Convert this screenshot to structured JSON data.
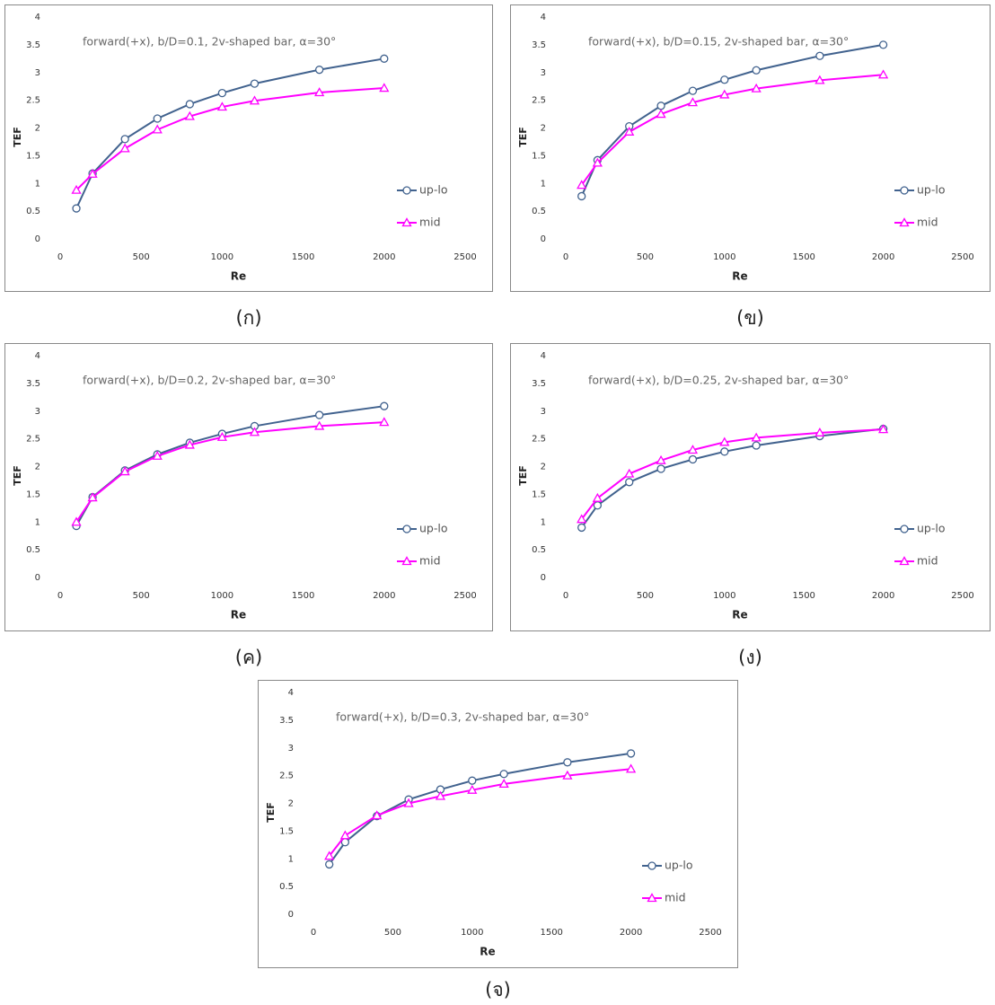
{
  "chart_data": [
    {
      "type": "line",
      "title": "forward(+x), b/D=0.1, 2v-shaped bar, α=30°",
      "caption": "(ก)",
      "xlabel": "Re",
      "ylabel": "TEF",
      "x": [
        100,
        200,
        400,
        600,
        800,
        1000,
        1200,
        1600,
        2000
      ],
      "series": [
        {
          "name": "up-lo",
          "color": "#41628e",
          "marker": "circle",
          "values": [
            0.55,
            1.18,
            1.8,
            2.17,
            2.43,
            2.63,
            2.8,
            3.05,
            3.25
          ]
        },
        {
          "name": "mid",
          "color": "#ff00ff",
          "marker": "triangle",
          "values": [
            0.88,
            1.17,
            1.63,
            1.97,
            2.21,
            2.38,
            2.49,
            2.64,
            2.72
          ]
        }
      ],
      "xlim": [
        0,
        2500
      ],
      "xticks": [
        0,
        500,
        1000,
        1500,
        2000,
        2500
      ],
      "ylim": [
        0,
        4
      ],
      "yticks": [
        0,
        0.5,
        1,
        1.5,
        2,
        2.5,
        3,
        3.5,
        4
      ],
      "legend": "right"
    },
    {
      "type": "line",
      "title": "forward(+x), b/D=0.15, 2v-shaped bar, α=30°",
      "caption": "(ข)",
      "xlabel": "Re",
      "ylabel": "TEF",
      "x": [
        100,
        200,
        400,
        600,
        800,
        1000,
        1200,
        1600,
        2000
      ],
      "series": [
        {
          "name": "up-lo",
          "color": "#41628e",
          "marker": "circle",
          "values": [
            0.77,
            1.42,
            2.03,
            2.4,
            2.67,
            2.87,
            3.04,
            3.3,
            3.5
          ]
        },
        {
          "name": "mid",
          "color": "#ff00ff",
          "marker": "triangle",
          "values": [
            0.97,
            1.37,
            1.93,
            2.25,
            2.46,
            2.6,
            2.71,
            2.86,
            2.96
          ]
        }
      ],
      "xlim": [
        0,
        2500
      ],
      "xticks": [
        0,
        500,
        1000,
        1500,
        2000,
        2500
      ],
      "ylim": [
        0,
        4
      ],
      "yticks": [
        0,
        0.5,
        1,
        1.5,
        2,
        2.5,
        3,
        3.5,
        4
      ],
      "legend": "right"
    },
    {
      "type": "line",
      "title": "forward(+x), b/D=0.2, 2v-shaped bar, α=30°",
      "caption": "(ค)",
      "xlabel": "Re",
      "ylabel": "TEF",
      "x": [
        100,
        200,
        400,
        600,
        800,
        1000,
        1200,
        1600,
        2000
      ],
      "series": [
        {
          "name": "up-lo",
          "color": "#41628e",
          "marker": "circle",
          "values": [
            0.93,
            1.45,
            1.93,
            2.22,
            2.43,
            2.59,
            2.73,
            2.93,
            3.09
          ]
        },
        {
          "name": "mid",
          "color": "#ff00ff",
          "marker": "triangle",
          "values": [
            1.0,
            1.44,
            1.91,
            2.19,
            2.39,
            2.53,
            2.62,
            2.73,
            2.8
          ]
        }
      ],
      "xlim": [
        0,
        2500
      ],
      "xticks": [
        0,
        500,
        1000,
        1500,
        2000,
        2500
      ],
      "ylim": [
        0,
        4
      ],
      "yticks": [
        0,
        0.5,
        1,
        1.5,
        2,
        2.5,
        3,
        3.5,
        4
      ],
      "legend": "right"
    },
    {
      "type": "line",
      "title": "forward(+x), b/D=0.25, 2v-shaped bar, α=30°",
      "caption": "(ง)",
      "xlabel": "Re",
      "ylabel": "TEF",
      "x": [
        100,
        200,
        400,
        600,
        800,
        1000,
        1200,
        1600,
        2000
      ],
      "series": [
        {
          "name": "up-lo",
          "color": "#41628e",
          "marker": "circle",
          "values": [
            0.9,
            1.3,
            1.72,
            1.96,
            2.13,
            2.27,
            2.38,
            2.55,
            2.68
          ]
        },
        {
          "name": "mid",
          "color": "#ff00ff",
          "marker": "triangle",
          "values": [
            1.05,
            1.43,
            1.87,
            2.11,
            2.3,
            2.44,
            2.52,
            2.61,
            2.67
          ]
        }
      ],
      "xlim": [
        0,
        2500
      ],
      "xticks": [
        0,
        500,
        1000,
        1500,
        2000,
        2500
      ],
      "ylim": [
        0,
        4
      ],
      "yticks": [
        0,
        0.5,
        1,
        1.5,
        2,
        2.5,
        3,
        3.5,
        4
      ],
      "legend": "right"
    },
    {
      "type": "line",
      "title": "forward(+x), b/D=0.3, 2v-shaped bar, α=30°",
      "caption": "(จ)",
      "xlabel": "Re",
      "ylabel": "TEF",
      "x": [
        100,
        200,
        400,
        600,
        800,
        1000,
        1200,
        1600,
        2000
      ],
      "series": [
        {
          "name": "up-lo",
          "color": "#41628e",
          "marker": "circle",
          "values": [
            0.9,
            1.3,
            1.77,
            2.07,
            2.25,
            2.41,
            2.53,
            2.74,
            2.9
          ]
        },
        {
          "name": "mid",
          "color": "#ff00ff",
          "marker": "triangle",
          "values": [
            1.05,
            1.42,
            1.78,
            2.0,
            2.13,
            2.24,
            2.35,
            2.5,
            2.62
          ]
        }
      ],
      "xlim": [
        0,
        2500
      ],
      "xticks": [
        0,
        500,
        1000,
        1500,
        2000,
        2500
      ],
      "ylim": [
        0,
        4
      ],
      "yticks": [
        0,
        0.5,
        1,
        1.5,
        2,
        2.5,
        3,
        3.5,
        4
      ],
      "legend": "right"
    }
  ]
}
